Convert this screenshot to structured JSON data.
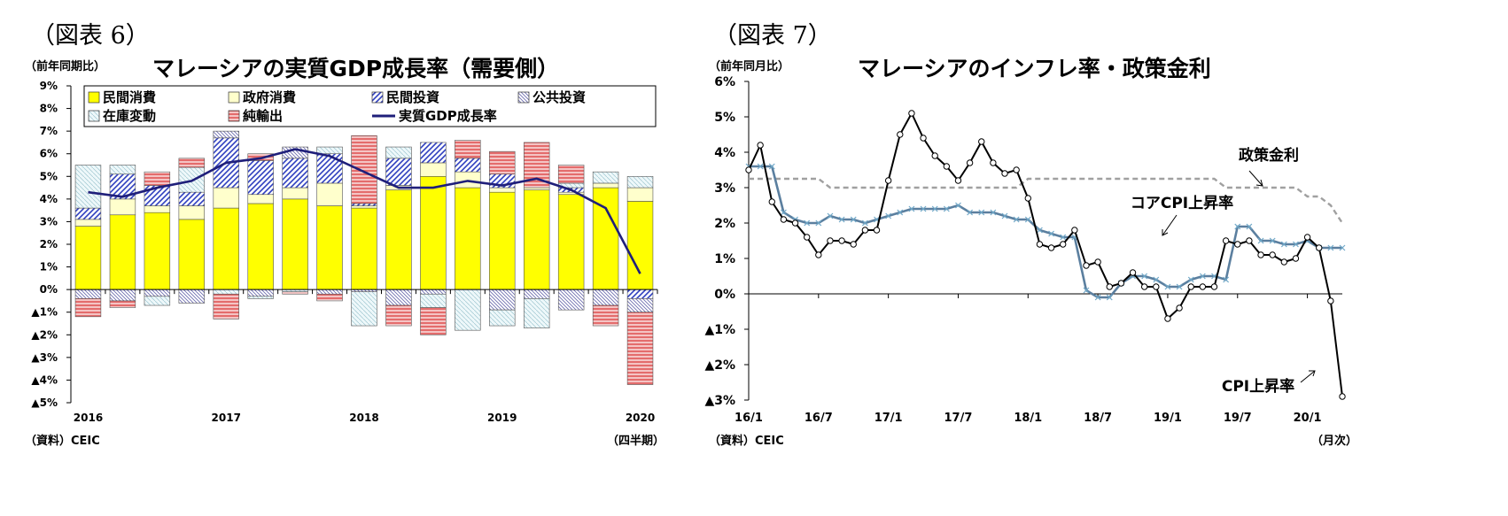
{
  "left": {
    "fig_label": "（図表 6）",
    "unit": "（前年同期比）",
    "source": "（資料）CEIC",
    "period_note": "（四半期）",
    "chart_data": {
      "type": "bar",
      "title": "マレーシアの実質GDP成長率（需要側）",
      "ylim": [
        -5,
        9
      ],
      "ytick_values": [
        9,
        8,
        7,
        6,
        5,
        4,
        3,
        2,
        1,
        0,
        -1,
        -2,
        -3,
        -4,
        -5
      ],
      "yticks": [
        "9%",
        "8%",
        "7%",
        "6%",
        "5%",
        "4%",
        "3%",
        "2%",
        "1%",
        "0%",
        "▲1%",
        "▲2%",
        "▲3%",
        "▲4%",
        "▲5%"
      ],
      "categories": [
        "2016Q1",
        "2016Q2",
        "2016Q3",
        "2016Q4",
        "2017Q1",
        "2017Q2",
        "2017Q3",
        "2017Q4",
        "2018Q1",
        "2018Q2",
        "2018Q3",
        "2018Q4",
        "2019Q1",
        "2019Q2",
        "2019Q3",
        "2019Q4",
        "2020Q1"
      ],
      "xtick_labels": [
        {
          "index": 0,
          "label": "2016"
        },
        {
          "index": 4,
          "label": "2017"
        },
        {
          "index": 8,
          "label": "2018"
        },
        {
          "index": 12,
          "label": "2019"
        },
        {
          "index": 16,
          "label": "2020"
        }
      ],
      "series": [
        {
          "name": "民間消費",
          "kind": "bar",
          "values": [
            2.8,
            3.3,
            3.4,
            3.1,
            3.6,
            3.8,
            4.0,
            3.7,
            3.6,
            4.4,
            5.0,
            4.5,
            4.3,
            4.4,
            4.2,
            4.5,
            3.9
          ]
        },
        {
          "name": "政府消費",
          "kind": "bar",
          "values": [
            0.3,
            0.7,
            0.3,
            0.6,
            0.9,
            0.4,
            0.5,
            1.0,
            0.1,
            0.2,
            0.6,
            0.7,
            0.2,
            0.1,
            0.1,
            0.2,
            0.6
          ]
        },
        {
          "name": "民間投資",
          "kind": "bar",
          "values": [
            0.5,
            1.1,
            0.9,
            0.6,
            2.2,
            1.5,
            1.3,
            1.3,
            0.1,
            1.2,
            0.9,
            0.6,
            0.6,
            0.0,
            0.2,
            0.0,
            -0.4
          ]
        },
        {
          "name": "公共投資",
          "kind": "bar",
          "values": [
            -0.4,
            -0.5,
            -0.3,
            -0.6,
            0.3,
            -0.3,
            0.5,
            -0.2,
            -0.1,
            -0.7,
            -0.2,
            0.0,
            -0.9,
            -0.4,
            -0.9,
            -0.7,
            -0.6
          ]
        },
        {
          "name": "在庫変動",
          "kind": "bar",
          "values": [
            1.9,
            0.4,
            -0.4,
            1.1,
            -0.2,
            -0.1,
            -0.1,
            0.3,
            -1.5,
            0.5,
            -0.6,
            -1.8,
            -0.7,
            -1.3,
            0.2,
            0.5,
            0.5
          ]
        },
        {
          "name": "純輸出",
          "kind": "bar",
          "values": [
            -0.8,
            -0.3,
            0.6,
            0.4,
            -1.1,
            0.3,
            -0.1,
            -0.3,
            3.0,
            -0.9,
            -1.2,
            0.8,
            1.0,
            2.0,
            0.8,
            -0.9,
            -3.2
          ]
        },
        {
          "name": "実質GDP成長率",
          "kind": "line",
          "values": [
            4.3,
            4.1,
            4.5,
            4.8,
            5.6,
            5.8,
            6.2,
            5.9,
            5.2,
            4.5,
            4.5,
            4.8,
            4.6,
            4.9,
            4.4,
            3.6,
            0.7
          ]
        }
      ],
      "legend": [
        {
          "label": "民間消費",
          "key": "private"
        },
        {
          "label": "政府消費",
          "key": "gov"
        },
        {
          "label": "民間投資",
          "key": "pinv"
        },
        {
          "label": "公共投資",
          "key": "ginv"
        },
        {
          "label": "在庫変動",
          "key": "stock"
        },
        {
          "label": "純輸出",
          "key": "netex"
        },
        {
          "label": "実質GDP成長率",
          "key": "line"
        }
      ],
      "legend_position": "top",
      "colors": {
        "private": "#ffff00",
        "gov": "#ffffcc",
        "pinv": "#2f3fbf",
        "ginv": "#7f7fbf",
        "stock": "#d6eef2",
        "netex": "#e06666",
        "line": "#1f1f7a"
      }
    }
  },
  "right": {
    "fig_label": "（図表 7）",
    "unit": "（前年同月比）",
    "source": "（資料）CEIC",
    "period_note": "（月次）",
    "chart_data": {
      "type": "line",
      "title": "マレーシアのインフレ率・政策金利",
      "ylim": [
        -3,
        6
      ],
      "ytick_values": [
        6,
        5,
        4,
        3,
        2,
        1,
        0,
        -1,
        -2,
        -3
      ],
      "yticks": [
        "6%",
        "5%",
        "4%",
        "3%",
        "2%",
        "1%",
        "0%",
        "▲1%",
        "▲2%",
        "▲3%"
      ],
      "x": [
        "16/1",
        "16/2",
        "16/3",
        "16/4",
        "16/5",
        "16/6",
        "16/7",
        "16/8",
        "16/9",
        "16/10",
        "16/11",
        "16/12",
        "17/1",
        "17/2",
        "17/3",
        "17/4",
        "17/5",
        "17/6",
        "17/7",
        "17/8",
        "17/9",
        "17/10",
        "17/11",
        "17/12",
        "18/1",
        "18/2",
        "18/3",
        "18/4",
        "18/5",
        "18/6",
        "18/7",
        "18/8",
        "18/9",
        "18/10",
        "18/11",
        "18/12",
        "19/1",
        "19/2",
        "19/3",
        "19/4",
        "19/5",
        "19/6",
        "19/7",
        "19/8",
        "19/9",
        "19/10",
        "19/11",
        "19/12",
        "20/1",
        "20/2",
        "20/3",
        "20/4"
      ],
      "xtick_labels": [
        {
          "index": 0,
          "label": "16/1"
        },
        {
          "index": 6,
          "label": "16/7"
        },
        {
          "index": 12,
          "label": "17/1"
        },
        {
          "index": 18,
          "label": "17/7"
        },
        {
          "index": 24,
          "label": "18/1"
        },
        {
          "index": 30,
          "label": "18/7"
        },
        {
          "index": 36,
          "label": "19/1"
        },
        {
          "index": 42,
          "label": "19/7"
        },
        {
          "index": 48,
          "label": "20/1"
        }
      ],
      "series": [
        {
          "name": "CPI上昇率",
          "values": [
            3.5,
            4.2,
            2.6,
            2.1,
            2.0,
            1.6,
            1.1,
            1.5,
            1.5,
            1.4,
            1.8,
            1.8,
            3.2,
            4.5,
            5.1,
            4.4,
            3.9,
            3.6,
            3.2,
            3.7,
            4.3,
            3.7,
            3.4,
            3.5,
            2.7,
            1.4,
            1.3,
            1.4,
            1.8,
            0.8,
            0.9,
            0.2,
            0.3,
            0.6,
            0.2,
            0.2,
            -0.7,
            -0.4,
            0.2,
            0.2,
            0.2,
            1.5,
            1.4,
            1.5,
            1.1,
            1.1,
            0.9,
            1.0,
            1.6,
            1.3,
            -0.2,
            -2.9
          ]
        },
        {
          "name": "コアCPI上昇率",
          "values": [
            3.6,
            3.6,
            3.6,
            2.3,
            2.1,
            2.0,
            2.0,
            2.2,
            2.1,
            2.1,
            2.0,
            2.1,
            2.2,
            2.3,
            2.4,
            2.4,
            2.4,
            2.4,
            2.5,
            2.3,
            2.3,
            2.3,
            2.2,
            2.1,
            2.1,
            1.8,
            1.7,
            1.6,
            1.6,
            0.1,
            -0.1,
            -0.1,
            0.3,
            0.5,
            0.5,
            0.4,
            0.2,
            0.2,
            0.4,
            0.5,
            0.5,
            0.4,
            1.9,
            1.9,
            1.5,
            1.5,
            1.4,
            1.4,
            1.5,
            1.3,
            1.3,
            1.3
          ]
        },
        {
          "name": "政策金利",
          "style": "dashed",
          "values": [
            3.25,
            3.25,
            3.25,
            3.25,
            3.25,
            3.25,
            3.25,
            3.0,
            3.0,
            3.0,
            3.0,
            3.0,
            3.0,
            3.0,
            3.0,
            3.0,
            3.0,
            3.0,
            3.0,
            3.0,
            3.0,
            3.0,
            3.0,
            3.0,
            3.25,
            3.25,
            3.25,
            3.25,
            3.25,
            3.25,
            3.25,
            3.25,
            3.25,
            3.25,
            3.25,
            3.25,
            3.25,
            3.25,
            3.25,
            3.25,
            3.25,
            3.0,
            3.0,
            3.0,
            3.0,
            3.0,
            3.0,
            3.0,
            2.75,
            2.75,
            2.5,
            2.0
          ]
        }
      ],
      "annotations": [
        "政策金利",
        "コアCPI上昇率",
        "CPI上昇率"
      ],
      "colors": {
        "cpi": "#000000",
        "core": "#5b7f9f",
        "policy": "#a0a0a0"
      }
    }
  }
}
